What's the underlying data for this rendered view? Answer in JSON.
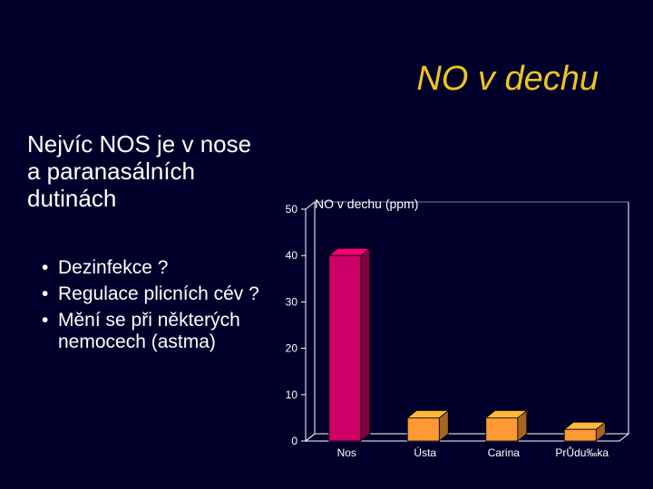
{
  "slide": {
    "title": "NO v dechu",
    "heading": "Nejvíc NOS je v nose a paranasálních dutinách",
    "bullets": [
      "Dezinfekce ?",
      "Regulace plicních cév ?",
      "Mění se při některých nemocech (astma)"
    ]
  },
  "chart_data": {
    "type": "bar",
    "title": "NO v dechu (ppm)",
    "categories": [
      "Nos",
      "Ústa",
      "Carina",
      "PrŮdu‰ka"
    ],
    "values": [
      40,
      5,
      5,
      2.5
    ],
    "bar_colors": [
      "#cc0066",
      "#ff9933",
      "#ff9933",
      "#ff9933"
    ],
    "ylim": [
      0,
      50
    ],
    "yticks": [
      0,
      10,
      20,
      30,
      40,
      50
    ],
    "xlabel": "",
    "ylabel": "",
    "grid": false,
    "projection": "3d",
    "background": "#00002b",
    "axis_color": "#ffffff"
  }
}
